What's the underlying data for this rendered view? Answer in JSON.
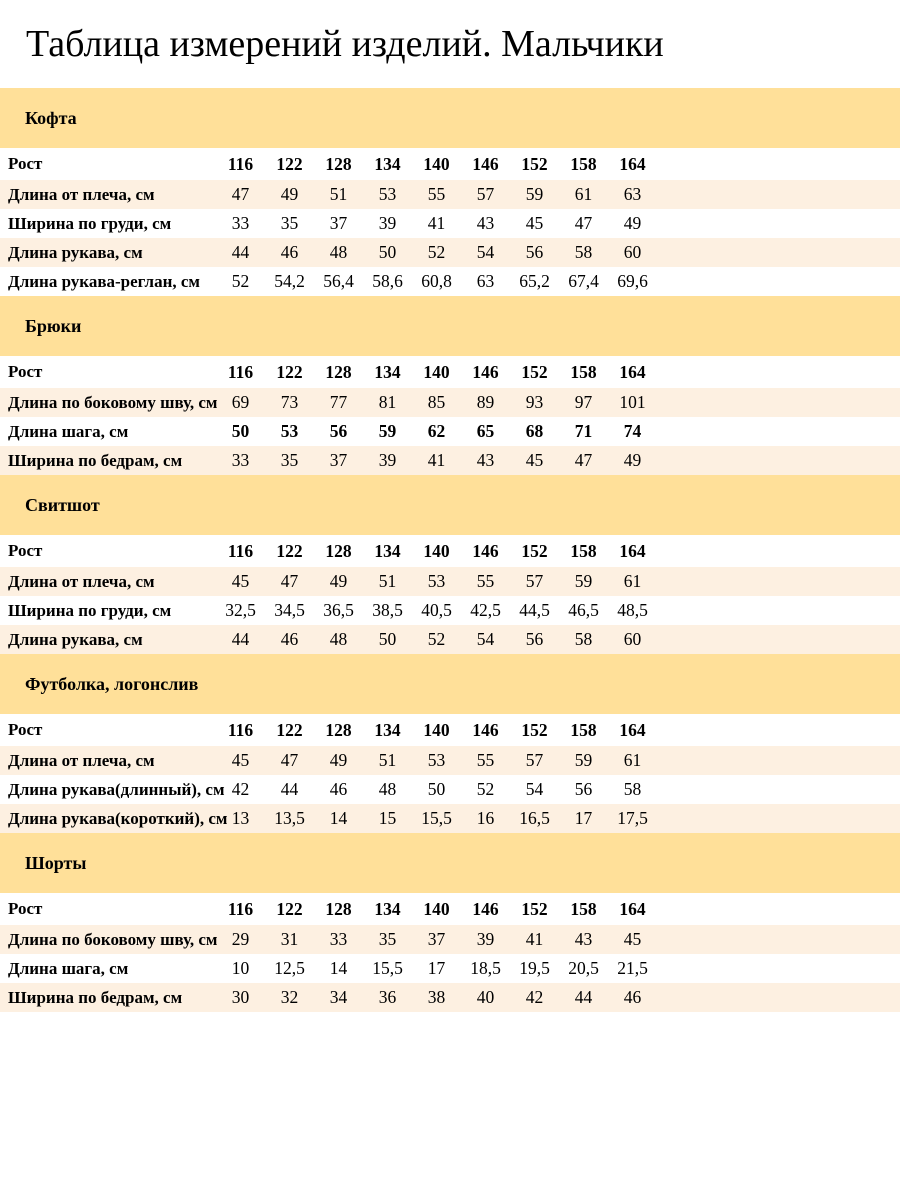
{
  "title": "Таблица измерений изделий. Мальчики",
  "size_header_label": "Рост",
  "sizes": [
    "116",
    "122",
    "128",
    "134",
    "140",
    "146",
    "152",
    "158",
    "164"
  ],
  "colors": {
    "section_bar": "#ffe099",
    "row_alt": "#fdf0e1",
    "row_plain": "#ffffff",
    "text": "#000000"
  },
  "sections": [
    {
      "name": "Кофта",
      "rows": [
        {
          "label": "Длина от плеча, см",
          "values": [
            "47",
            "49",
            "51",
            "53",
            "55",
            "57",
            "59",
            "61",
            "63"
          ]
        },
        {
          "label": "Ширина по груди, см",
          "values": [
            "33",
            "35",
            "37",
            "39",
            "41",
            "43",
            "45",
            "47",
            "49"
          ]
        },
        {
          "label": "Длина рукава, см",
          "values": [
            "44",
            "46",
            "48",
            "50",
            "52",
            "54",
            "56",
            "58",
            "60"
          ]
        },
        {
          "label": "Длина рукава-реглан, см",
          "values": [
            "52",
            "54,2",
            "56,4",
            "58,6",
            "60,8",
            "63",
            "65,2",
            "67,4",
            "69,6"
          ]
        }
      ]
    },
    {
      "name": "Брюки",
      "rows": [
        {
          "label": "Длина по боковому шву, см",
          "values": [
            "69",
            "73",
            "77",
            "81",
            "85",
            "89",
            "93",
            "97",
            "101"
          ]
        },
        {
          "label": "Длина шага, см",
          "values": [
            "50",
            "53",
            "56",
            "59",
            "62",
            "65",
            "68",
            "71",
            "74"
          ],
          "values_bold": true
        },
        {
          "label": "Ширина по бедрам, см",
          "values": [
            "33",
            "35",
            "37",
            "39",
            "41",
            "43",
            "45",
            "47",
            "49"
          ]
        }
      ]
    },
    {
      "name": "Свитшот",
      "rows": [
        {
          "label": "Длина от плеча, см",
          "values": [
            "45",
            "47",
            "49",
            "51",
            "53",
            "55",
            "57",
            "59",
            "61"
          ]
        },
        {
          "label": "Ширина по груди, см",
          "values": [
            "32,5",
            "34,5",
            "36,5",
            "38,5",
            "40,5",
            "42,5",
            "44,5",
            "46,5",
            "48,5"
          ]
        },
        {
          "label": "Длина рукава, см",
          "values": [
            "44",
            "46",
            "48",
            "50",
            "52",
            "54",
            "56",
            "58",
            "60"
          ]
        }
      ]
    },
    {
      "name": "Футболка, логонслив",
      "rows": [
        {
          "label": "Длина от плеча, см",
          "values": [
            "45",
            "47",
            "49",
            "51",
            "53",
            "55",
            "57",
            "59",
            "61"
          ]
        },
        {
          "label": "Длина рукава(длинный), см",
          "values": [
            "42",
            "44",
            "46",
            "48",
            "50",
            "52",
            "54",
            "56",
            "58"
          ]
        },
        {
          "label": "Длина рукава(короткий), см",
          "values": [
            "13",
            "13,5",
            "14",
            "15",
            "15,5",
            "16",
            "16,5",
            "17",
            "17,5"
          ]
        }
      ]
    },
    {
      "name": "Шорты",
      "rows": [
        {
          "label": "Длина по боковому шву, см",
          "values": [
            "29",
            "31",
            "33",
            "35",
            "37",
            "39",
            "41",
            "43",
            "45"
          ]
        },
        {
          "label": "Длина шага, см",
          "values": [
            "10",
            "12,5",
            "14",
            "15,5",
            "17",
            "18,5",
            "19,5",
            "20,5",
            "21,5"
          ]
        },
        {
          "label": "Ширина по бедрам, см",
          "values": [
            "30",
            "32",
            "34",
            "36",
            "38",
            "40",
            "42",
            "44",
            "46"
          ]
        }
      ]
    }
  ]
}
